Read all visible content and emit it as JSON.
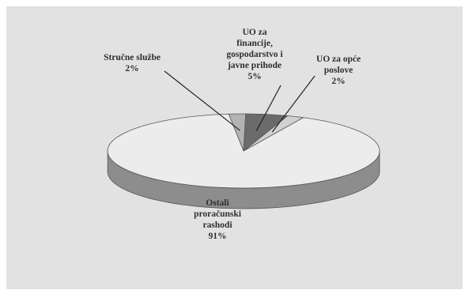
{
  "chart_data": {
    "type": "pie",
    "title": "",
    "three_d": true,
    "slices": [
      {
        "label_lines": [
          "Stručne službe",
          "2%"
        ],
        "value": 2,
        "color": "#b3b3b3"
      },
      {
        "label_lines": [
          "UO za",
          "financije,",
          "gospodarstvo i",
          "javne prihode",
          "5%"
        ],
        "value": 5,
        "color": "#6b6b6b"
      },
      {
        "label_lines": [
          "UO za opće",
          "poslove",
          "2%"
        ],
        "value": 2,
        "color": "#d0d0d0"
      },
      {
        "label_lines": [
          "Ostali",
          "proračunski",
          "rashodi",
          "91%"
        ],
        "value": 91,
        "color": "#ececec"
      }
    ],
    "colors": {
      "plot_background": "#e2e2e2",
      "side_main": "#8d8d8d",
      "outline": "#555555",
      "leader_line": "#222222"
    },
    "legend": "none",
    "grid": false
  }
}
